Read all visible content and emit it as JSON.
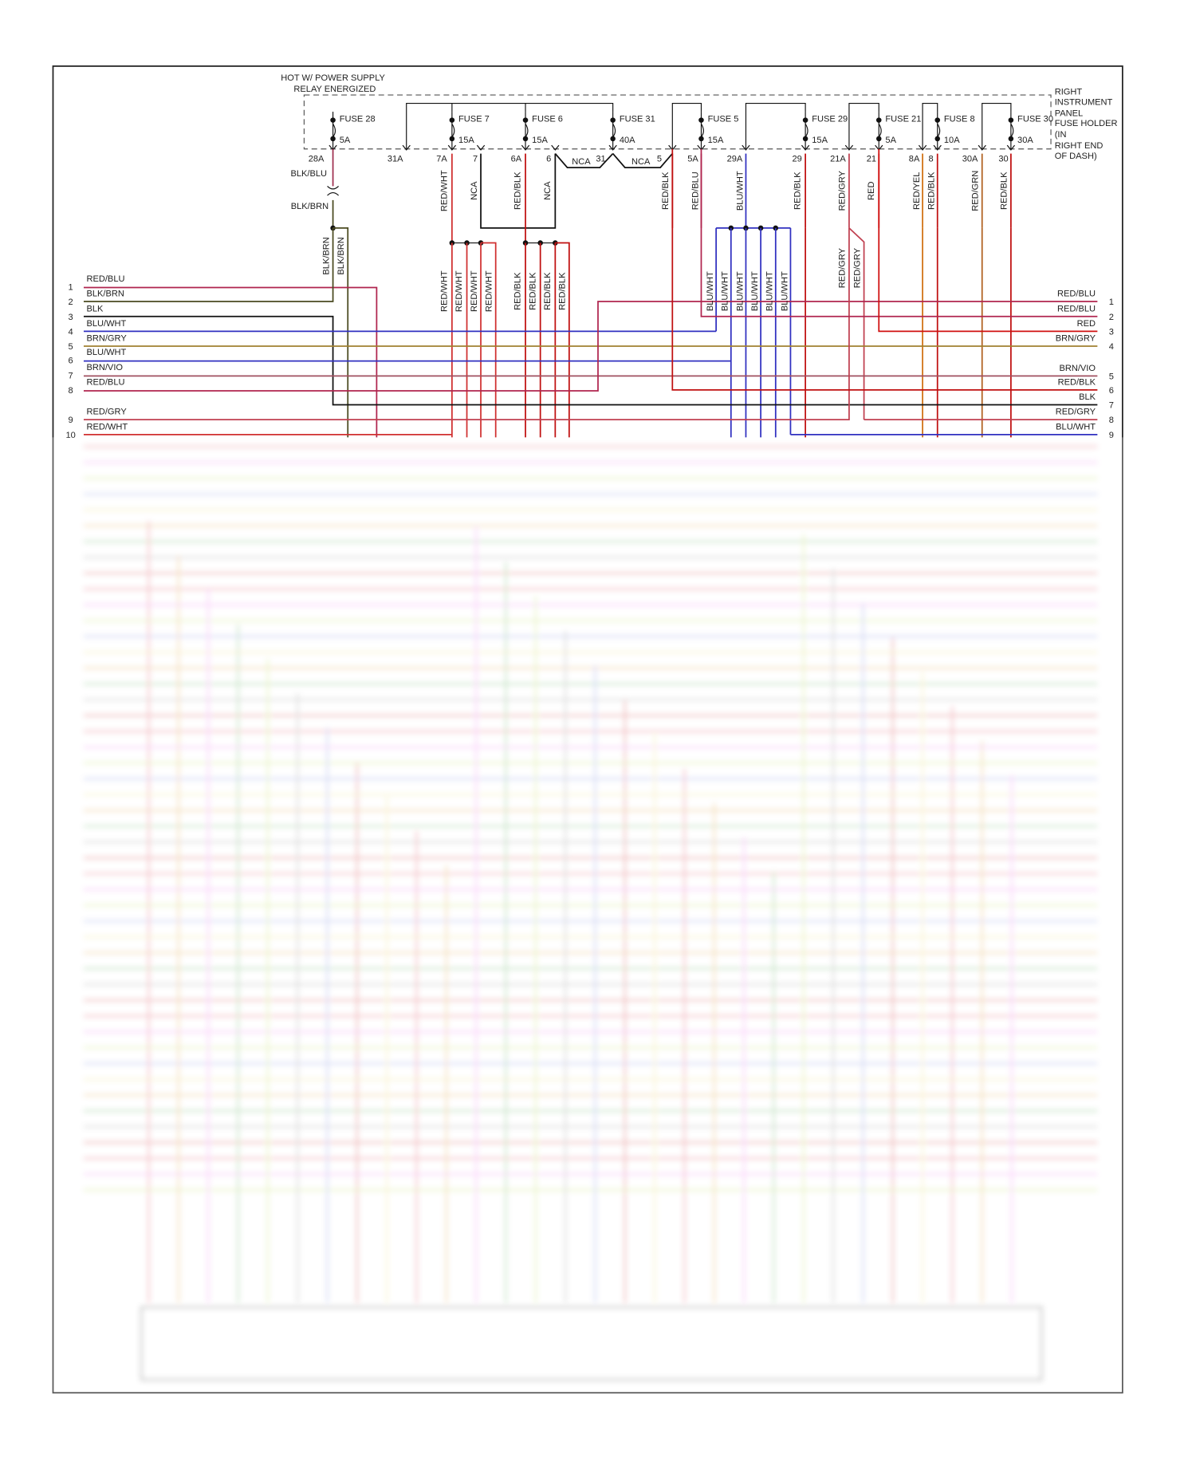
{
  "header": {
    "lines": [
      "HOT W/ POWER SUPPLY",
      "RELAY ENERGIZED"
    ]
  },
  "fuse_holder": {
    "lines": [
      "RIGHT",
      "INSTRUMENT",
      "PANEL",
      "FUSE HOLDER",
      "(IN",
      "RIGHT END",
      "OF DASH)"
    ]
  },
  "fuses": [
    {
      "name": "FUSE 28",
      "rating": "5A"
    },
    {
      "name": "FUSE 7",
      "rating": "15A"
    },
    {
      "name": "FUSE 6",
      "rating": "15A"
    },
    {
      "name": "FUSE 31",
      "rating": "40A"
    },
    {
      "name": "FUSE 5",
      "rating": "15A"
    },
    {
      "name": "FUSE 29",
      "rating": "15A"
    },
    {
      "name": "FUSE 21",
      "rating": "5A"
    },
    {
      "name": "FUSE 8",
      "rating": "10A"
    },
    {
      "name": "FUSE 30",
      "rating": "30A"
    }
  ],
  "terminals": [
    "28A",
    "31A",
    "7A",
    "7",
    "6A",
    "6",
    "31",
    "5",
    "5A",
    "29A",
    "29",
    "21A",
    "21",
    "8A",
    "8",
    "30A",
    "30"
  ],
  "nca_labels": [
    "NCA",
    "NCA"
  ],
  "splice_labels": [
    "BLK/BLU",
    "BLK/BRN"
  ],
  "upper_wire_labels": [
    "RED/WHT",
    "NCA",
    "RED/BLK",
    "NCA",
    "RED/BLK",
    "RED/BLU",
    "BLU/WHT",
    "RED/BLK",
    "RED/GRY",
    "RED",
    "RED/YEL",
    "RED/BLK",
    "RED/GRN",
    "RED/BLK"
  ],
  "middle_wire_labels": [
    "BLK/BRN",
    "BLK/BRN",
    "RED/WHT",
    "RED/WHT",
    "RED/WHT",
    "RED/WHT",
    "RED/BLK",
    "RED/BLK",
    "RED/BLK",
    "RED/BLK",
    "BLU/WHT",
    "BLU/WHT",
    "BLU/WHT",
    "BLU/WHT",
    "BLU/WHT",
    "BLU/WHT",
    "RED/GRY",
    "RED/GRY"
  ],
  "left_connector": [
    {
      "pin": 1,
      "label": "RED/BLU"
    },
    {
      "pin": 2,
      "label": "BLK/BRN"
    },
    {
      "pin": 3,
      "label": "BLK"
    },
    {
      "pin": 4,
      "label": "BLU/WHT"
    },
    {
      "pin": 5,
      "label": "BRN/GRY"
    },
    {
      "pin": 6,
      "label": "BLU/WHT"
    },
    {
      "pin": 7,
      "label": "BRN/VIO"
    },
    {
      "pin": 8,
      "label": "RED/BLU"
    },
    {
      "pin": 9,
      "label": "RED/GRY"
    },
    {
      "pin": 10,
      "label": "RED/WHT"
    }
  ],
  "right_connector": [
    {
      "pin": 1,
      "label": "RED/BLU"
    },
    {
      "pin": 2,
      "label": "RED/BLU"
    },
    {
      "pin": 3,
      "label": "RED"
    },
    {
      "pin": 4,
      "label": "BRN/GRY"
    },
    {
      "pin": 5,
      "label": "BRN/VIO"
    },
    {
      "pin": 6,
      "label": "RED/BLK"
    },
    {
      "pin": 7,
      "label": "BLK"
    },
    {
      "pin": 8,
      "label": "RED/GRY"
    },
    {
      "pin": 9,
      "label": "BLU/WHT"
    }
  ]
}
